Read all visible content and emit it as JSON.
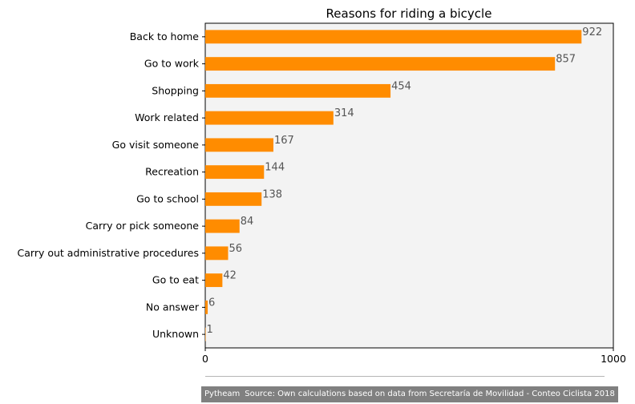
{
  "chart_data": {
    "type": "bar",
    "orientation": "horizontal",
    "title": "Reasons for riding a bicycle",
    "xlabel": "",
    "ylabel": "",
    "categories": [
      "Back to home",
      "Go to work",
      "Shopping",
      "Work related",
      "Go visit someone",
      "Recreation",
      "Go to school",
      "Carry or pick someone",
      "Carry out administrative procedures",
      "Go to eat",
      "No answer",
      "Unknown"
    ],
    "values": [
      922,
      857,
      454,
      314,
      167,
      144,
      138,
      84,
      56,
      42,
      6,
      1
    ],
    "xlim": [
      0,
      1000
    ],
    "xticks": [
      "0",
      "1000"
    ],
    "grid": false,
    "legend": "none",
    "colors": {
      "bar": "#ff8c00",
      "plot_bg": "#f3f3f3",
      "value_label": "#555555"
    }
  },
  "footer": {
    "brand": "Pytheam",
    "source": "Source: Own calculations based on data from Secretaría de Movilidad - Conteo Ciclista 2018"
  }
}
